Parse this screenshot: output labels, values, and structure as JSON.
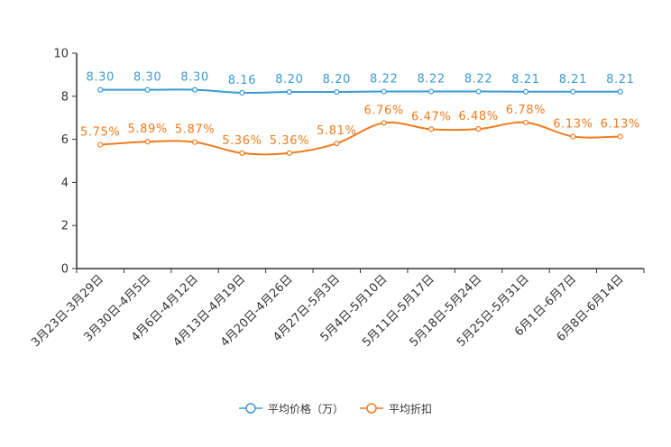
{
  "chart_data": {
    "type": "line",
    "title": "",
    "xlabel": "",
    "ylabel": "",
    "ylim": [
      0,
      10
    ],
    "yticks": [
      0,
      2,
      4,
      6,
      8,
      10
    ],
    "ytick_labels": [
      "0",
      "2",
      "4",
      "6",
      "8",
      "10"
    ],
    "grid": false,
    "legend_position": "bottom-center",
    "categories": [
      "3月23日-3月29日",
      "3月30日-4月5日",
      "4月6日-4月12日",
      "4月13日-4月19日",
      "4月20日-4月26日",
      "4月27日-5月3日",
      "5月4日-5月10日",
      "5月11日-5月17日",
      "5月18日-5月24日",
      "5月25日-5月31日",
      "6月1日-6月7日",
      "6月8日-6月14日"
    ],
    "series": [
      {
        "name": "平均价格（万）",
        "color": "#3a9bd0",
        "values": [
          8.3,
          8.3,
          8.3,
          8.16,
          8.2,
          8.2,
          8.22,
          8.22,
          8.22,
          8.21,
          8.21,
          8.21
        ],
        "labels": [
          "8.30",
          "8.30",
          "8.30",
          "8.16",
          "8.20",
          "8.20",
          "8.22",
          "8.22",
          "8.22",
          "8.21",
          "8.21",
          "8.21"
        ]
      },
      {
        "name": "平均折扣",
        "color": "#f07b1d",
        "values": [
          5.75,
          5.89,
          5.87,
          5.36,
          5.36,
          5.81,
          6.76,
          6.47,
          6.48,
          6.78,
          6.13,
          6.13
        ],
        "labels": [
          "5.75%",
          "5.89%",
          "5.87%",
          "5.36%",
          "5.36%",
          "5.81%",
          "6.76%",
          "6.47%",
          "6.48%",
          "6.78%",
          "6.13%",
          "6.13%"
        ]
      }
    ]
  }
}
